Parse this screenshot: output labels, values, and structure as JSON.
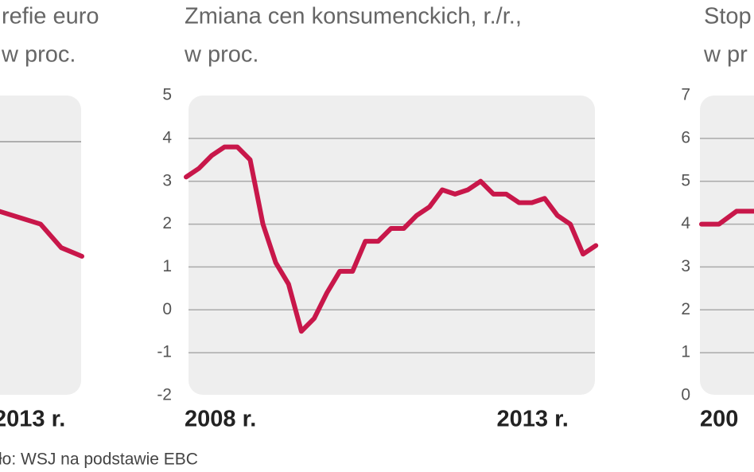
{
  "chart_data": [
    {
      "type": "line",
      "title": [
        "refie euro",
        "w proc."
      ],
      "categories": [
        "2013 r.",
        null,
        null,
        null,
        null
      ],
      "series": [
        {
          "color": "#c8174a",
          "values": [
            2.3,
            2.15,
            2.0,
            1.45,
            1.25
          ]
        }
      ],
      "ylim": [
        -2,
        5
      ]
    },
    {
      "type": "line",
      "title": [
        "Zmiana cen konsumenckich, r./r.,",
        "w proc."
      ],
      "categories": [
        "2008 r.",
        null,
        null,
        null,
        null,
        null,
        null,
        null,
        null,
        null,
        null,
        null,
        null,
        null,
        null,
        null,
        null,
        null,
        null,
        null,
        null,
        null,
        null,
        null,
        null,
        "2013 r.",
        null,
        null,
        null,
        null,
        null,
        null,
        null
      ],
      "series": [
        {
          "color": "#c8174a",
          "values": [
            3.1,
            3.3,
            3.6,
            3.8,
            3.8,
            3.5,
            2.0,
            1.1,
            0.6,
            -0.5,
            -0.2,
            0.4,
            0.9,
            0.9,
            1.6,
            1.6,
            1.9,
            1.9,
            2.2,
            2.4,
            2.8,
            2.7,
            2.8,
            3.0,
            2.7,
            2.7,
            2.5,
            2.5,
            2.6,
            2.2,
            2.0,
            1.3,
            1.5
          ]
        }
      ],
      "ylim": [
        -2,
        5
      ],
      "yticks": [
        5,
        4,
        3,
        2,
        1,
        0,
        -1,
        -2
      ],
      "grid": true
    },
    {
      "type": "line",
      "title": [
        "Stop",
        "w pr"
      ],
      "categories": [
        "200",
        null,
        null,
        null
      ],
      "series": [
        {
          "color": "#c8174a",
          "values": [
            4,
            4,
            4.3,
            4.3
          ]
        }
      ],
      "ylim": [
        0,
        7
      ],
      "yticks": [
        7,
        6,
        5,
        4,
        3,
        2,
        1,
        0
      ],
      "grid": true
    }
  ],
  "source": "ło: WSJ na podstawie EBC"
}
